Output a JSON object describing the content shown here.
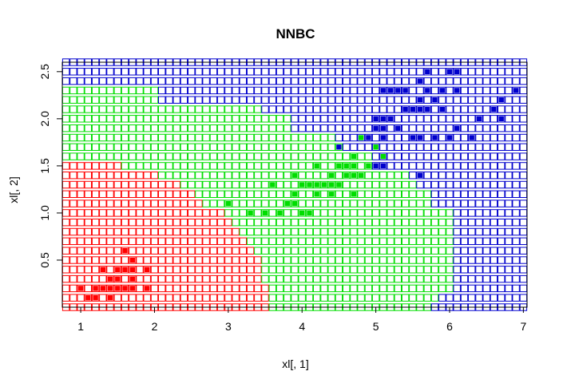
{
  "chart_data": {
    "type": "scatter",
    "title": "NNBC",
    "xlabel": "xl[, 1]",
    "ylabel": "xl[, 2]",
    "xlim": [
      0.75,
      7.05
    ],
    "ylim": [
      0.0,
      2.6
    ],
    "x_ticks": [
      "1",
      "2",
      "3",
      "4",
      "5",
      "6",
      "7"
    ],
    "y_ticks": [
      "0.5",
      "1.0",
      "1.5",
      "2.0",
      "2.5"
    ],
    "grid_x": [
      0.8,
      7.0,
      0.1
    ],
    "grid_y": [
      0.0,
      2.6,
      0.1
    ],
    "classes": [
      {
        "class": "1",
        "color": "#ff0000"
      },
      {
        "class": "2",
        "color": "#00dd00"
      },
      {
        "class": "3",
        "color": "#0000cc"
      }
    ],
    "region_boundaries": [
      {
        "y": 0.0,
        "x12": 3.6,
        "x23": 5.8
      },
      {
        "y": 0.1,
        "x12": 3.6,
        "x23": 5.85
      },
      {
        "y": 0.2,
        "x12": 3.6,
        "x23": 6.05
      },
      {
        "y": 0.3,
        "x12": 3.45,
        "x23": 6.05
      },
      {
        "y": 0.4,
        "x12": 3.45,
        "x23": 6.05
      },
      {
        "y": 0.5,
        "x12": 3.45,
        "x23": 6.05
      },
      {
        "y": 0.6,
        "x12": 3.35,
        "x23": 6.05
      },
      {
        "y": 0.7,
        "x12": 3.3,
        "x23": 6.05
      },
      {
        "y": 0.8,
        "x12": 3.15,
        "x23": 6.05
      },
      {
        "y": 0.9,
        "x12": 3.05,
        "x23": 6.05
      },
      {
        "y": 1.0,
        "x12": 2.95,
        "x23": 6.05
      },
      {
        "y": 1.1,
        "x12": 2.65,
        "x23": 5.75
      },
      {
        "y": 1.2,
        "x12": 2.55,
        "x23": 5.75
      },
      {
        "y": 1.3,
        "x12": 2.35,
        "x23": 5.6
      },
      {
        "y": 1.4,
        "x12": 2.05,
        "x23": 5.5
      },
      {
        "y": 1.5,
        "x12": 1.55,
        "x23": 5.0
      },
      {
        "y": 1.6,
        "x12": 0.75,
        "x23": 4.95
      },
      {
        "y": 1.7,
        "x12": 0.75,
        "x23": 4.55
      },
      {
        "y": 1.8,
        "x12": 0.75,
        "x23": 4.45
      },
      {
        "y": 1.9,
        "x12": 0.75,
        "x23": 3.9
      },
      {
        "y": 2.0,
        "x12": 0.75,
        "x23": 3.9
      },
      {
        "y": 2.1,
        "x12": 0.75,
        "x23": 3.45
      },
      {
        "y": 2.2,
        "x12": 0.75,
        "x23": 2.05
      },
      {
        "y": 2.3,
        "x12": 0.75,
        "x23": 2.05
      },
      {
        "y": 2.4,
        "x12": 0.75,
        "x23": 0.75
      },
      {
        "y": 2.5,
        "x12": 0.75,
        "x23": 0.75
      },
      {
        "y": 2.6,
        "x12": 0.75,
        "x23": 0.75
      }
    ],
    "series": [
      {
        "class": "1",
        "color": "#ff0000",
        "points": [
          [
            1.0,
            0.2
          ],
          [
            1.1,
            0.1
          ],
          [
            1.2,
            0.2
          ],
          [
            1.2,
            0.1
          ],
          [
            1.3,
            0.4
          ],
          [
            1.3,
            0.2
          ],
          [
            1.4,
            0.3
          ],
          [
            1.4,
            0.2
          ],
          [
            1.4,
            0.1
          ],
          [
            1.5,
            0.4
          ],
          [
            1.5,
            0.3
          ],
          [
            1.5,
            0.2
          ],
          [
            1.6,
            0.6
          ],
          [
            1.6,
            0.4
          ],
          [
            1.6,
            0.2
          ],
          [
            1.7,
            0.5
          ],
          [
            1.7,
            0.4
          ],
          [
            1.7,
            0.3
          ],
          [
            1.7,
            0.2
          ],
          [
            1.9,
            0.4
          ],
          [
            1.9,
            0.2
          ]
        ]
      },
      {
        "class": "2",
        "color": "#00dd00",
        "points": [
          [
            3.0,
            1.1
          ],
          [
            3.3,
            1.0
          ],
          [
            3.5,
            1.0
          ],
          [
            3.6,
            1.3
          ],
          [
            3.7,
            1.0
          ],
          [
            3.8,
            1.1
          ],
          [
            3.9,
            1.4
          ],
          [
            3.9,
            1.2
          ],
          [
            3.9,
            1.1
          ],
          [
            4.0,
            1.3
          ],
          [
            4.0,
            1.0
          ],
          [
            4.1,
            1.3
          ],
          [
            4.1,
            1.0
          ],
          [
            4.2,
            1.5
          ],
          [
            4.2,
            1.3
          ],
          [
            4.2,
            1.2
          ],
          [
            4.3,
            1.3
          ],
          [
            4.4,
            1.4
          ],
          [
            4.4,
            1.3
          ],
          [
            4.4,
            1.2
          ],
          [
            4.5,
            1.5
          ],
          [
            4.5,
            1.3
          ],
          [
            4.6,
            1.5
          ],
          [
            4.6,
            1.4
          ],
          [
            4.7,
            1.6
          ],
          [
            4.7,
            1.5
          ],
          [
            4.7,
            1.4
          ],
          [
            4.7,
            1.2
          ],
          [
            4.8,
            1.8
          ],
          [
            4.8,
            1.4
          ],
          [
            4.9,
            1.5
          ],
          [
            5.0,
            1.7
          ],
          [
            5.1,
            1.6
          ]
        ]
      },
      {
        "class": "3",
        "color": "#0000cc",
        "points": [
          [
            4.5,
            1.7
          ],
          [
            4.9,
            1.8
          ],
          [
            5.0,
            2.0
          ],
          [
            5.0,
            1.9
          ],
          [
            5.0,
            1.5
          ],
          [
            5.1,
            2.3
          ],
          [
            5.1,
            2.0
          ],
          [
            5.1,
            1.9
          ],
          [
            5.1,
            1.8
          ],
          [
            5.1,
            1.5
          ],
          [
            5.2,
            2.3
          ],
          [
            5.2,
            2.0
          ],
          [
            5.3,
            2.3
          ],
          [
            5.3,
            1.9
          ],
          [
            5.4,
            2.3
          ],
          [
            5.4,
            2.1
          ],
          [
            5.5,
            2.1
          ],
          [
            5.5,
            1.8
          ],
          [
            5.6,
            2.4
          ],
          [
            5.6,
            2.2
          ],
          [
            5.6,
            2.1
          ],
          [
            5.6,
            1.8
          ],
          [
            5.6,
            1.4
          ],
          [
            5.7,
            2.5
          ],
          [
            5.7,
            2.3
          ],
          [
            5.7,
            2.1
          ],
          [
            5.8,
            2.2
          ],
          [
            5.8,
            1.8
          ],
          [
            5.9,
            2.3
          ],
          [
            5.9,
            2.1
          ],
          [
            6.0,
            2.5
          ],
          [
            6.0,
            1.8
          ],
          [
            6.1,
            2.5
          ],
          [
            6.1,
            2.3
          ],
          [
            6.1,
            1.9
          ],
          [
            6.3,
            1.8
          ],
          [
            6.4,
            2.0
          ],
          [
            6.6,
            2.1
          ],
          [
            6.7,
            2.2
          ],
          [
            6.7,
            2.0
          ],
          [
            6.9,
            2.3
          ]
        ]
      }
    ]
  }
}
